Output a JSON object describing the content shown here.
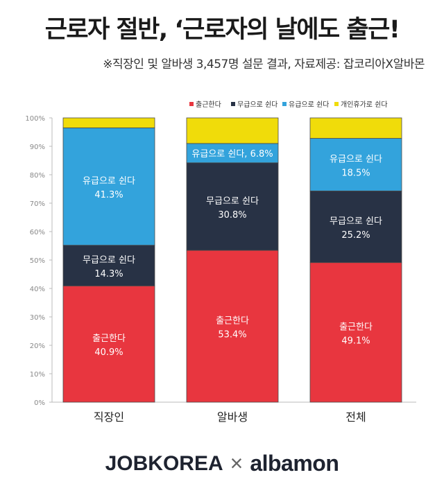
{
  "header": {
    "title": "근로자 절반, ‘근로자의 날에도 출근!",
    "subtitle": "※직장인 및 알바생 3,457명 설문 결과, 자료제공: 잡코리아X알바몬"
  },
  "chart_data": {
    "type": "bar",
    "stacked": true,
    "categories": [
      "직장인",
      "알바생",
      "전체"
    ],
    "series": [
      {
        "name": "출근한다",
        "color": "#e8363f",
        "values": [
          40.9,
          53.4,
          49.1
        ],
        "labels": [
          "40.9%",
          "53.4%",
          "49.1%"
        ]
      },
      {
        "name": "무급으로 쉰다",
        "color": "#283245",
        "values": [
          14.3,
          30.8,
          25.2
        ],
        "labels": [
          "14.3%",
          "30.8%",
          "25.2%"
        ]
      },
      {
        "name": "유급으로 쉰다",
        "color": "#33a3dc",
        "values": [
          41.3,
          6.8,
          18.5
        ],
        "labels": [
          "41.3%",
          "6.8%",
          "18.5%"
        ]
      },
      {
        "name": "개인휴가로 쉰다",
        "color": "#f0dc0a",
        "values": [
          3.5,
          9.0,
          7.2
        ],
        "labels": [
          null,
          null,
          null
        ]
      }
    ],
    "y_ticks": [
      "0%",
      "10%",
      "20%",
      "30%",
      "40%",
      "50%",
      "60%",
      "70%",
      "80%",
      "90%",
      "100%"
    ],
    "ylim": [
      0,
      100
    ],
    "grid": false,
    "legend": "top-right"
  },
  "footer": {
    "logo_left": "JOBKOREA",
    "logo_sep": "×",
    "logo_right": "albamon"
  }
}
